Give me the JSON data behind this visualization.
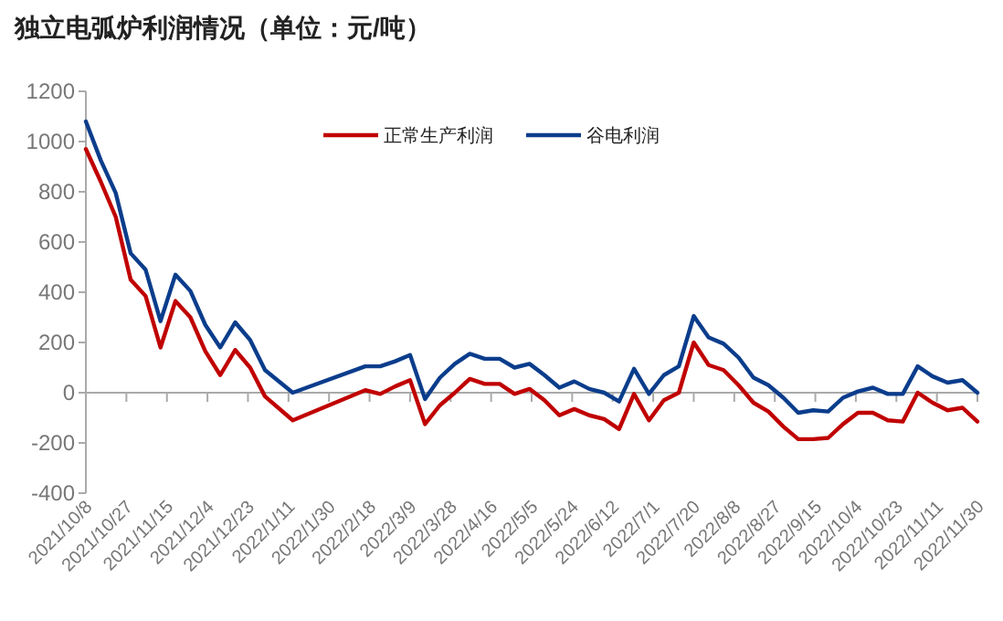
{
  "chart_data": {
    "type": "line",
    "title": "独立电弧炉利润情况（单位：元/吨）",
    "legend": "top",
    "grid": false,
    "marker": "none",
    "line_style": "solid",
    "xlim": [
      "2021-10-08",
      "2022-11-30"
    ],
    "xticks": [
      {
        "value": "2021-10-08",
        "label": "2021/10/8"
      },
      {
        "value": "2021-10-27",
        "label": "2021/10/27"
      },
      {
        "value": "2021-11-15",
        "label": "2021/11/15"
      },
      {
        "value": "2021-12-04",
        "label": "2021/12/4"
      },
      {
        "value": "2021-12-23",
        "label": "2021/12/23"
      },
      {
        "value": "2022-01-11",
        "label": "2022/1/11"
      },
      {
        "value": "2022-01-30",
        "label": "2022/1/30"
      },
      {
        "value": "2022-02-18",
        "label": "2022/2/18"
      },
      {
        "value": "2022-03-09",
        "label": "2022/3/9"
      },
      {
        "value": "2022-03-28",
        "label": "2022/3/28"
      },
      {
        "value": "2022-04-16",
        "label": "2022/4/16"
      },
      {
        "value": "2022-05-05",
        "label": "2022/5/5"
      },
      {
        "value": "2022-05-24",
        "label": "2022/5/24"
      },
      {
        "value": "2022-06-12",
        "label": "2022/6/12"
      },
      {
        "value": "2022-07-01",
        "label": "2022/7/1"
      },
      {
        "value": "2022-07-20",
        "label": "2022/7/20"
      },
      {
        "value": "2022-08-08",
        "label": "2022/8/8"
      },
      {
        "value": "2022-08-27",
        "label": "2022/8/27"
      },
      {
        "value": "2022-09-15",
        "label": "2022/9/15"
      },
      {
        "value": "2022-10-04",
        "label": "2022/10/4"
      },
      {
        "value": "2022-10-23",
        "label": "2022/10/23"
      },
      {
        "value": "2022-11-11",
        "label": "2022/11/11"
      },
      {
        "value": "2022-11-30",
        "label": "2022/11/30"
      }
    ],
    "ref_lines": [
      {
        "axis": "y",
        "value": 0,
        "color": "#aaaaaa"
      }
    ],
    "ylim": [
      -400,
      1200
    ],
    "yticks": [
      -400,
      -200,
      0,
      200,
      400,
      600,
      800,
      1000,
      1200
    ],
    "x": [
      "2021-10-08",
      "2021-10-15",
      "2021-10-22",
      "2021-10-29",
      "2021-11-05",
      "2021-11-12",
      "2021-11-19",
      "2021-11-26",
      "2021-12-03",
      "2021-12-10",
      "2021-12-17",
      "2021-12-24",
      "2021-12-31",
      "2022-01-13",
      "2022-02-16",
      "2022-02-23",
      "2022-03-02",
      "2022-03-09",
      "2022-03-16",
      "2022-03-23",
      "2022-03-30",
      "2022-04-06",
      "2022-04-13",
      "2022-04-20",
      "2022-04-27",
      "2022-05-04",
      "2022-05-11",
      "2022-05-18",
      "2022-05-25",
      "2022-06-01",
      "2022-06-08",
      "2022-06-15",
      "2022-06-22",
      "2022-06-29",
      "2022-07-06",
      "2022-07-13",
      "2022-07-20",
      "2022-07-27",
      "2022-08-03",
      "2022-08-10",
      "2022-08-17",
      "2022-08-24",
      "2022-08-31",
      "2022-09-07",
      "2022-09-14",
      "2022-09-21",
      "2022-09-28",
      "2022-10-05",
      "2022-10-12",
      "2022-10-19",
      "2022-10-26",
      "2022-11-02",
      "2022-11-09",
      "2022-11-16",
      "2022-11-23",
      "2022-11-30"
    ],
    "series": [
      {
        "name": "正常生产利润",
        "color": "#c00000",
        "values": [
          970,
          840,
          700,
          450,
          385,
          180,
          365,
          300,
          165,
          70,
          170,
          100,
          -15,
          -110,
          10,
          -5,
          25,
          50,
          -125,
          -50,
          0,
          55,
          35,
          35,
          -5,
          15,
          -30,
          -90,
          -65,
          -90,
          -105,
          -145,
          -5,
          -110,
          -30,
          0,
          200,
          110,
          90,
          30,
          -40,
          -75,
          -135,
          -185,
          -185,
          -180,
          -125,
          -80,
          -80,
          -110,
          -115,
          0,
          -40,
          -70,
          -60,
          -115
        ]
      },
      {
        "name": "谷电利润",
        "color": "#0b3d8c",
        "values": [
          1080,
          925,
          795,
          555,
          490,
          285,
          470,
          405,
          270,
          180,
          280,
          210,
          90,
          0,
          105,
          105,
          125,
          150,
          -25,
          60,
          115,
          155,
          135,
          135,
          100,
          115,
          70,
          20,
          45,
          15,
          0,
          -35,
          95,
          -5,
          70,
          105,
          305,
          220,
          195,
          140,
          60,
          30,
          -20,
          -80,
          -70,
          -75,
          -20,
          5,
          20,
          -5,
          -5,
          105,
          65,
          40,
          50,
          0
        ]
      }
    ]
  }
}
